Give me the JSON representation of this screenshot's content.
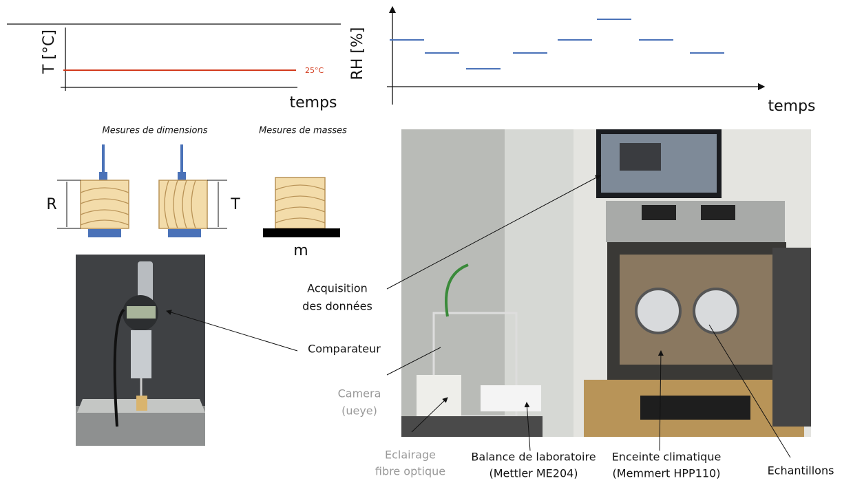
{
  "temperature_plot": {
    "y_label": "T [°C]",
    "level_label": "25°C",
    "x_label": "temps"
  },
  "humidity_plot": {
    "y_label": "RH [%]",
    "x_label": "temps"
  },
  "measurements": {
    "dimensions_title": "Mesures de dimensions",
    "masses_title": "Mesures de masses",
    "radial_label": "R",
    "tangential_label": "T",
    "mass_label": "m"
  },
  "callouts": {
    "acquisition": {
      "lines": [
        "Acquisition",
        "des données"
      ]
    },
    "comparateur": {
      "lines": [
        "Comparateur"
      ]
    },
    "camera": {
      "lines": [
        "Camera",
        "(ueye)"
      ]
    },
    "eclairage": {
      "lines": [
        "Eclairage",
        "fibre optique"
      ]
    },
    "balance": {
      "lines": [
        "Balance de laboratoire",
        "(Mettler ME204)"
      ]
    },
    "enceinte": {
      "lines": [
        "Enceinte climatique",
        "(Memmert HPP110)"
      ]
    },
    "echantillons": {
      "lines": [
        "Echantillons"
      ]
    }
  }
}
